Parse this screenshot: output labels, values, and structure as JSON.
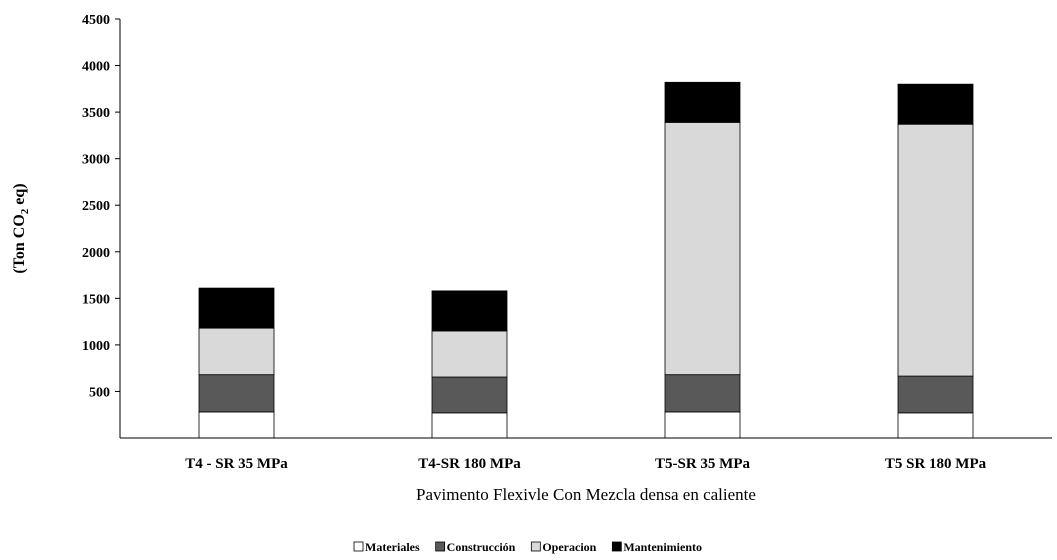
{
  "chart_data": {
    "type": "bar",
    "stacked": true,
    "title": "",
    "xlabel": "Pavimento Flexivle Con Mezcla densa en caliente",
    "ylabel_main": "(Ton CO",
    "ylabel_sub": "2",
    "ylabel_end": " eq)",
    "categories": [
      "T4 - SR  35 MPa",
      "T4-SR 180 MPa",
      "T5-SR  35 MPa",
      "T5 SR 180 MPa"
    ],
    "yticks": [
      "500",
      "1000",
      "1500",
      "2000",
      "2500",
      "3000",
      "3500",
      "4000",
      "4500"
    ],
    "ylim": [
      0,
      4500
    ],
    "grid": false,
    "legend_position": "bottom",
    "series": [
      {
        "name": "Materiales",
        "color": "#ffffff",
        "values": [
          280,
          270,
          280,
          270
        ]
      },
      {
        "name": "Construcción",
        "color": "#595959",
        "values": [
          400,
          385,
          400,
          395
        ]
      },
      {
        "name": "Operacion",
        "color": "#d9d9d9",
        "values": [
          500,
          495,
          2710,
          2705
        ]
      },
      {
        "name": "Mantenimiento",
        "color": "#000000",
        "values": [
          430,
          430,
          430,
          430
        ]
      }
    ]
  }
}
